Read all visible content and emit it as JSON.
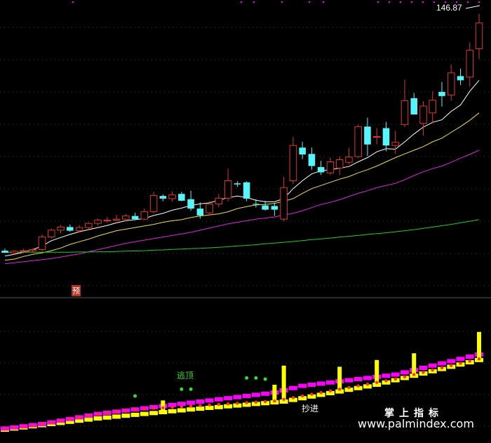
{
  "labels": {
    "price_annotation": "146.87",
    "signal_yu": "预",
    "signal_taoding": "逃顶",
    "signal_bottom": "抄进",
    "watermark_cn": "掌上指标",
    "watermark_url": "www.palmindex.com"
  },
  "colors": {
    "background": "#000000",
    "grid": "#3a3a3a",
    "up_candle": "#e0362b",
    "down_candle": "#54f6fc",
    "ma_white": "#ffffff",
    "ma_yellow": "#f0e030",
    "ma_magenta": "#e020e0",
    "ma_green": "#22cc22",
    "bar_yellow": "#ffff00",
    "bar_magenta": "#ff00ff",
    "dot_red": "#ff3030",
    "dot_green": "#2ee02e"
  },
  "chart_data": [
    {
      "type": "candlestick",
      "panel": "price",
      "ylim": [
        40,
        150
      ],
      "ohlc": [
        [
          56.8,
          57.6,
          56.2,
          56.0
        ],
        [
          56.0,
          57.0,
          55.4,
          56.6
        ],
        [
          56.6,
          57.4,
          55.8,
          56.8
        ],
        [
          56.8,
          57.6,
          56.0,
          57.2
        ],
        [
          57.2,
          63.0,
          56.6,
          62.0
        ],
        [
          62.0,
          65.2,
          61.4,
          64.6
        ],
        [
          64.6,
          66.6,
          63.4,
          65.8
        ],
        [
          65.8,
          66.8,
          64.0,
          64.4
        ],
        [
          64.4,
          66.6,
          63.8,
          65.6
        ],
        [
          65.6,
          67.6,
          64.8,
          67.2
        ],
        [
          67.2,
          69.0,
          66.4,
          68.4
        ],
        [
          68.4,
          69.6,
          67.4,
          68.4
        ],
        [
          68.4,
          70.4,
          68.0,
          68.8
        ],
        [
          68.8,
          70.8,
          68.0,
          70.0
        ],
        [
          70.0,
          71.2,
          68.4,
          68.8
        ],
        [
          68.8,
          72.8,
          68.4,
          71.6
        ],
        [
          71.6,
          79.2,
          71.0,
          77.8
        ],
        [
          77.6,
          78.2,
          75.6,
          76.6
        ],
        [
          76.6,
          79.4,
          75.4,
          78.0
        ],
        [
          78.4,
          79.2,
          75.6,
          75.8
        ],
        [
          76.4,
          79.6,
          72.0,
          72.8
        ],
        [
          72.8,
          75.2,
          69.0,
          70.2
        ],
        [
          71.2,
          75.6,
          70.2,
          74.6
        ],
        [
          74.6,
          78.4,
          73.4,
          76.8
        ],
        [
          76.8,
          88.0,
          75.6,
          83.4
        ],
        [
          82.4,
          83.2,
          81.0,
          82.0
        ],
        [
          82.8,
          83.2,
          75.6,
          76.6
        ],
        [
          74.6,
          76.4,
          73.2,
          74.4
        ],
        [
          74.0,
          75.8,
          72.0,
          72.4
        ],
        [
          73.8,
          75.0,
          70.0,
          72.4
        ],
        [
          68.8,
          84.8,
          68.0,
          80.8
        ],
        [
          83.4,
          100.0,
          82.2,
          96.8
        ],
        [
          96.0,
          98.2,
          91.6,
          93.4
        ],
        [
          93.6,
          96.0,
          87.6,
          89.0
        ],
        [
          88.6,
          91.0,
          85.6,
          86.6
        ],
        [
          86.4,
          92.2,
          85.6,
          90.6
        ],
        [
          88.2,
          92.6,
          85.6,
          91.4
        ],
        [
          90.4,
          95.8,
          89.6,
          92.4
        ],
        [
          92.6,
          104.6,
          92.0,
          104.0
        ],
        [
          104.0,
          107.4,
          92.8,
          97.2
        ],
        [
          100.0,
          103.4,
          97.2,
          100.2
        ],
        [
          103.4,
          105.8,
          94.6,
          96.8
        ],
        [
          96.8,
          102.4,
          93.6,
          98.0
        ],
        [
          104.8,
          121.8,
          103.8,
          113.8
        ],
        [
          114.8,
          116.8,
          108.6,
          108.6
        ],
        [
          105.2,
          113.6,
          100.6,
          111.8
        ],
        [
          109.2,
          117.4,
          105.2,
          114.0
        ],
        [
          117.2,
          121.0,
          111.6,
          115.6
        ],
        [
          116.0,
          127.6,
          113.8,
          124.4
        ],
        [
          123.2,
          126.0,
          119.8,
          121.6
        ],
        [
          122.8,
          136.0,
          119.2,
          133.0
        ],
        [
          133.6,
          146.9,
          129.6,
          143.4
        ]
      ],
      "moving_averages": [
        {
          "color": "ma_white",
          "values": [
            54.8,
            55.4,
            56.2,
            57.2,
            58.6,
            60.6,
            61.8,
            63.0,
            64.0,
            64.8,
            65.6,
            66.4,
            67.4,
            68.2,
            68.6,
            69.0,
            70.2,
            71.0,
            72.2,
            73.0,
            74.0,
            74.6,
            75.0,
            76.0,
            77.0,
            77.6,
            77.0,
            76.0,
            75.4,
            75.4,
            76.6,
            80.4,
            83.4,
            86.0,
            87.2,
            87.6,
            88.2,
            88.8,
            90.6,
            92.2,
            94.4,
            95.6,
            95.4,
            98.2,
            101.2,
            103.8,
            105.6,
            106.6,
            109.8,
            112.2,
            117.4,
            121.6
          ]
        },
        {
          "color": "ma_yellow",
          "values": [
            53.2,
            53.6,
            54.6,
            55.4,
            56.0,
            56.8,
            57.8,
            59.2,
            60.2,
            61.2,
            62.4,
            63.4,
            64.4,
            65.0,
            65.6,
            66.2,
            66.8,
            67.6,
            68.2,
            68.6,
            69.4,
            70.0,
            70.4,
            70.8,
            71.6,
            72.8,
            73.6,
            74.2,
            74.4,
            74.8,
            75.6,
            76.6,
            78.6,
            80.4,
            81.6,
            82.8,
            84.0,
            85.0,
            86.4,
            87.6,
            89.0,
            90.6,
            92.2,
            93.6,
            95.0,
            96.4,
            98.2,
            99.6,
            101.8,
            104.0,
            106.4,
            109.2
          ]
        },
        {
          "color": "ma_magenta",
          "values": [
            51.8,
            52.2,
            52.6,
            53.0,
            53.4,
            53.8,
            54.4,
            55.0,
            55.6,
            56.4,
            57.2,
            58.0,
            58.8,
            59.6,
            60.2,
            60.8,
            61.4,
            62.0,
            62.6,
            63.2,
            63.8,
            64.6,
            65.4,
            66.2,
            67.0,
            67.6,
            68.2,
            68.8,
            69.2,
            69.6,
            70.4,
            71.0,
            72.0,
            73.2,
            74.4,
            75.2,
            76.2,
            77.4,
            78.6,
            79.6,
            80.8,
            81.6,
            82.4,
            83.8,
            85.4,
            86.8,
            88.0,
            89.0,
            90.4,
            92.0,
            93.4,
            95.0
          ]
        },
        {
          "color": "ma_green",
          "values": [
            56.2,
            56.2,
            56.2,
            56.2,
            56.2,
            56.2,
            56.2,
            56.2,
            56.3,
            56.3,
            56.4,
            56.4,
            56.5,
            56.6,
            56.7,
            56.8,
            57.0,
            57.1,
            57.3,
            57.4,
            57.6,
            57.7,
            57.9,
            58.1,
            58.3,
            58.6,
            58.8,
            59.1,
            59.4,
            59.7,
            60.0,
            60.3,
            60.6,
            61.0,
            61.3,
            61.6,
            62.0,
            62.3,
            62.6,
            63.0,
            63.3,
            63.6,
            64.0,
            64.4,
            64.8,
            65.3,
            65.8,
            66.3,
            66.8,
            67.4,
            68.0,
            68.6
          ]
        }
      ]
    },
    {
      "type": "bar",
      "panel": "indicator",
      "ylim": [
        0,
        100
      ],
      "yellow_values": [
        0,
        1,
        2,
        3,
        4,
        5,
        6,
        7,
        8,
        9,
        10,
        10.8,
        11.6,
        12.4,
        13.2,
        14,
        14.8,
        15.6,
        16.4,
        17.2,
        18,
        18.7,
        19.4,
        20.1,
        20.8,
        21.5,
        22.2,
        22.9,
        23.6,
        24.3,
        25,
        26.5,
        28,
        29.5,
        31,
        32.5,
        34,
        35.5,
        37,
        38.5,
        40,
        42,
        44,
        46,
        48,
        50,
        52,
        54,
        56,
        58,
        60,
        62
      ],
      "magenta_values": [
        1,
        2,
        3,
        4,
        5,
        6.5,
        8,
        9.5,
        11,
        12.5,
        14,
        15,
        16,
        17,
        18,
        19,
        20,
        21,
        22,
        23,
        24,
        25,
        26,
        27,
        28,
        29,
        30,
        31,
        32,
        33,
        35,
        37,
        39,
        40,
        41,
        42,
        43,
        44,
        45,
        46,
        47,
        48,
        49,
        51,
        53,
        55,
        57,
        59,
        61,
        63,
        65,
        67
      ],
      "spikes": [
        {
          "index": 17,
          "value": 26
        },
        {
          "index": 29,
          "value": 40
        },
        {
          "index": 30,
          "value": 57
        },
        {
          "index": 36,
          "value": 56
        },
        {
          "index": 40,
          "value": 62
        },
        {
          "index": 44,
          "value": 68
        },
        {
          "index": 51,
          "value": 87
        }
      ],
      "red_dots": [
        0.5,
        1.5,
        2.5,
        3.5,
        5,
        6.5,
        8,
        9.5,
        11,
        12.5,
        14,
        15,
        16,
        17,
        18,
        18.5,
        19,
        19.5,
        20,
        20.5,
        21,
        21.5,
        22,
        22.5,
        23,
        23.5,
        24,
        24.5,
        25,
        25.5,
        27,
        28.5,
        30,
        31.5,
        33,
        34.5,
        36,
        37.5,
        39,
        40.5,
        42,
        43.5,
        45,
        47,
        49,
        51,
        53,
        55,
        57,
        59,
        61,
        63
      ],
      "green_dots": [
        {
          "index": 14,
          "value": 30
        },
        {
          "index": 19,
          "value": 36
        },
        {
          "index": 20,
          "value": 36
        },
        {
          "index": 26,
          "value": 46
        },
        {
          "index": 27,
          "value": 46
        },
        {
          "index": 28,
          "value": 45
        }
      ]
    }
  ]
}
